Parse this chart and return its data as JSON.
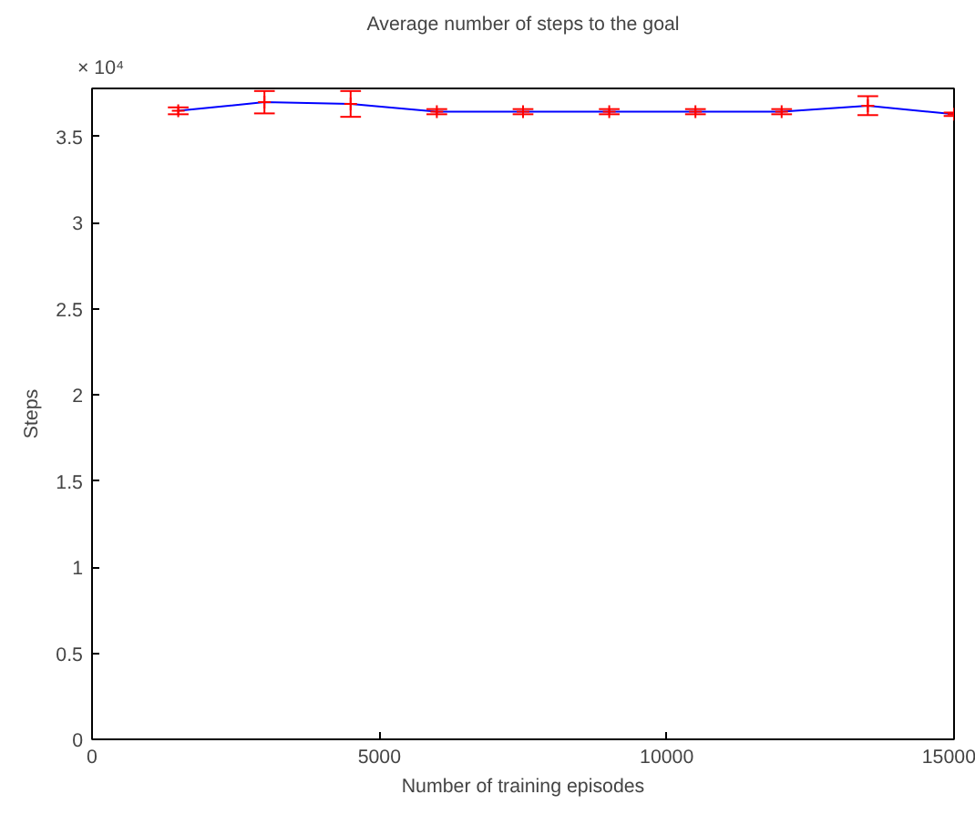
{
  "chart_data": {
    "type": "line",
    "title": "Average number of steps to the goal",
    "xlabel": "Number of training episodes",
    "ylabel": "Steps",
    "annotations": [
      "× 10⁴"
    ],
    "x": [
      1500,
      3000,
      4500,
      6000,
      7500,
      9000,
      10500,
      12000,
      13500,
      15000
    ],
    "series": [
      {
        "color": "#0000ff",
        "values": [
          3.65,
          3.7,
          3.69,
          3.645,
          3.645,
          3.645,
          3.645,
          3.645,
          3.68,
          3.63
        ],
        "errors": [
          0.02,
          0.065,
          0.075,
          0.015,
          0.015,
          0.015,
          0.015,
          0.015,
          0.055,
          0.01
        ]
      }
    ],
    "marker": "cross",
    "xlim": [
      0,
      15000
    ],
    "ylim": [
      0,
      3.78
    ],
    "xticks": [
      0,
      5000,
      10000,
      15000
    ],
    "yticks": [
      0,
      0.5,
      1,
      1.5,
      2,
      2.5,
      3,
      3.5
    ],
    "grid": false
  }
}
